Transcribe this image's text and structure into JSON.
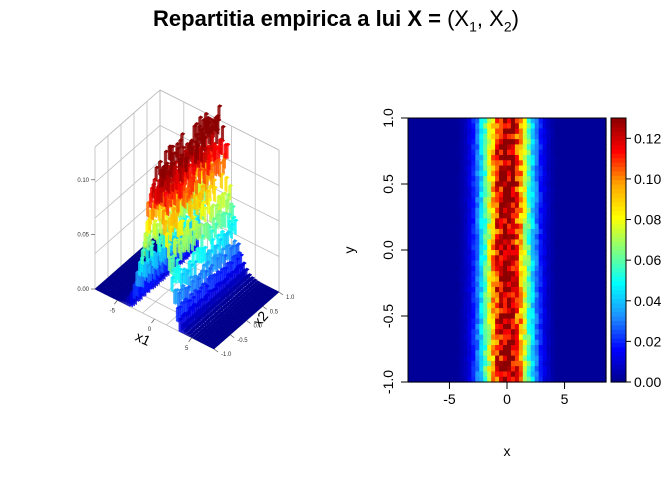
{
  "title": {
    "main": "Repartitia empirica a lui X = ",
    "paren_open": "(X",
    "sub1": "1",
    "comma": ", X",
    "sub2": "2",
    "paren_close": ")"
  },
  "colors": {
    "palette": [
      "#00008B",
      "#0000FF",
      "#1E90FF",
      "#00FFFF",
      "#7FFF7F",
      "#FFFF00",
      "#FFA500",
      "#FF0000",
      "#8B0000"
    ]
  },
  "chart_data": [
    {
      "type": "surface3d",
      "xlabel": "x1",
      "ylabel": "x2",
      "x_ticks": [
        "-5",
        "0",
        "5"
      ],
      "y_ticks": [
        "-1.0",
        "-0.5",
        "0.0",
        "0.5",
        "1.0"
      ],
      "z_ticks": [
        "0.00",
        "0.05",
        "0.10"
      ],
      "xlim": [
        -8,
        8
      ],
      "ylim": [
        -1,
        1
      ],
      "zlim": [
        0,
        0.13
      ],
      "distribution": {
        "x_center": 0,
        "x_sd": 1.5,
        "y_uniform": [
          -1,
          1
        ],
        "peak": 0.13
      }
    },
    {
      "type": "heatmap",
      "xlabel": "x",
      "ylabel": "y",
      "x_ticks": [
        -5,
        0,
        5
      ],
      "y_ticks": [
        "-1.0",
        "-0.5",
        "0.0",
        "0.5",
        "1.0"
      ],
      "y_tick_values": [
        -1,
        -0.5,
        0,
        0.5,
        1
      ],
      "xlim": [
        -8.6,
        8.6
      ],
      "ylim": [
        -1,
        1
      ],
      "colorbar_ticks": [
        "0.00",
        "0.02",
        "0.04",
        "0.06",
        "0.08",
        "0.10",
        "0.12"
      ],
      "colorbar_tick_values": [
        0,
        0.02,
        0.04,
        0.06,
        0.08,
        0.1,
        0.12
      ],
      "zlim": [
        0,
        0.13
      ],
      "distribution": {
        "x_center": 0,
        "x_sd": 1.5,
        "y_uniform": [
          -1,
          1
        ],
        "peak": 0.13
      }
    }
  ]
}
